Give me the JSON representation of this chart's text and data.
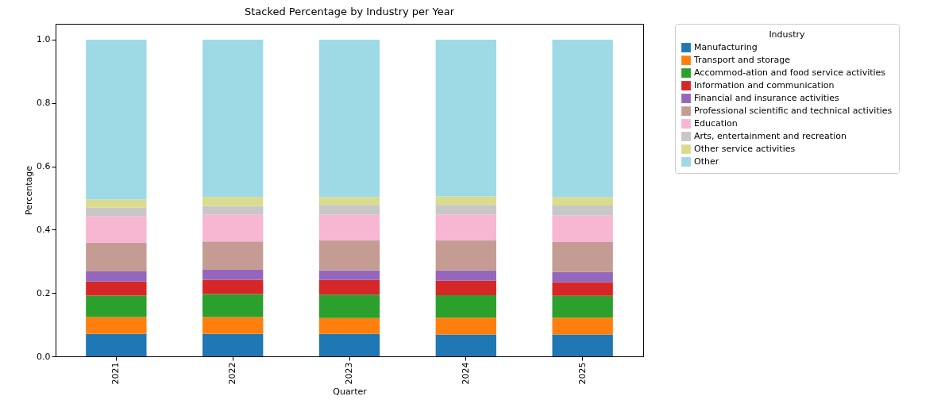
{
  "chart_data": {
    "type": "bar",
    "title": "Stacked Percentage by Industry per Year",
    "xlabel": "Quarter",
    "ylabel": "Percentage",
    "legend_title": "Industry",
    "categories": [
      "2021",
      "2022",
      "2023",
      "2024",
      "2025"
    ],
    "stacked": true,
    "ylim": [
      0,
      1.05
    ],
    "yticks": [
      {
        "value": 0,
        "label": "0.0"
      },
      {
        "value": 0.2,
        "label": "0.2"
      },
      {
        "value": 0.4,
        "label": "0.4"
      },
      {
        "value": 0.6,
        "label": "0.6"
      },
      {
        "value": 0.8,
        "label": "0.8"
      },
      {
        "value": 1,
        "label": "1.0"
      }
    ],
    "grid": false,
    "legend": "top right",
    "series": [
      {
        "name": "Manufacturing",
        "color": "#1f77b4",
        "values": [
          0.071,
          0.071,
          0.071,
          0.069,
          0.069
        ]
      },
      {
        "name": "Transport and storage",
        "color": "#ff7f0e",
        "values": [
          0.053,
          0.053,
          0.05,
          0.053,
          0.053
        ]
      },
      {
        "name": "Accommod-ation and food service activities",
        "color": "#2ca02c",
        "values": [
          0.068,
          0.073,
          0.074,
          0.071,
          0.069
        ]
      },
      {
        "name": "Information and communication",
        "color": "#d62728",
        "values": [
          0.044,
          0.045,
          0.046,
          0.046,
          0.043
        ]
      },
      {
        "name": "Financial and insurance activities",
        "color": "#9467bd",
        "values": [
          0.032,
          0.031,
          0.03,
          0.032,
          0.032
        ]
      },
      {
        "name": "Professional scientific and technical activities",
        "color": "#c49c94",
        "values": [
          0.091,
          0.09,
          0.095,
          0.095,
          0.095
        ]
      },
      {
        "name": "Education",
        "color": "#f7b6d2",
        "values": [
          0.084,
          0.085,
          0.082,
          0.082,
          0.083
        ]
      },
      {
        "name": "Arts, entertainment and recreation",
        "color": "#c7c7c7",
        "values": [
          0.027,
          0.027,
          0.03,
          0.03,
          0.032
        ]
      },
      {
        "name": "Other service activities",
        "color": "#dbdb8d",
        "values": [
          0.025,
          0.028,
          0.025,
          0.027,
          0.027
        ]
      },
      {
        "name": "Other",
        "color": "#9edae5",
        "values": [
          0.505,
          0.497,
          0.497,
          0.495,
          0.497
        ]
      }
    ]
  }
}
